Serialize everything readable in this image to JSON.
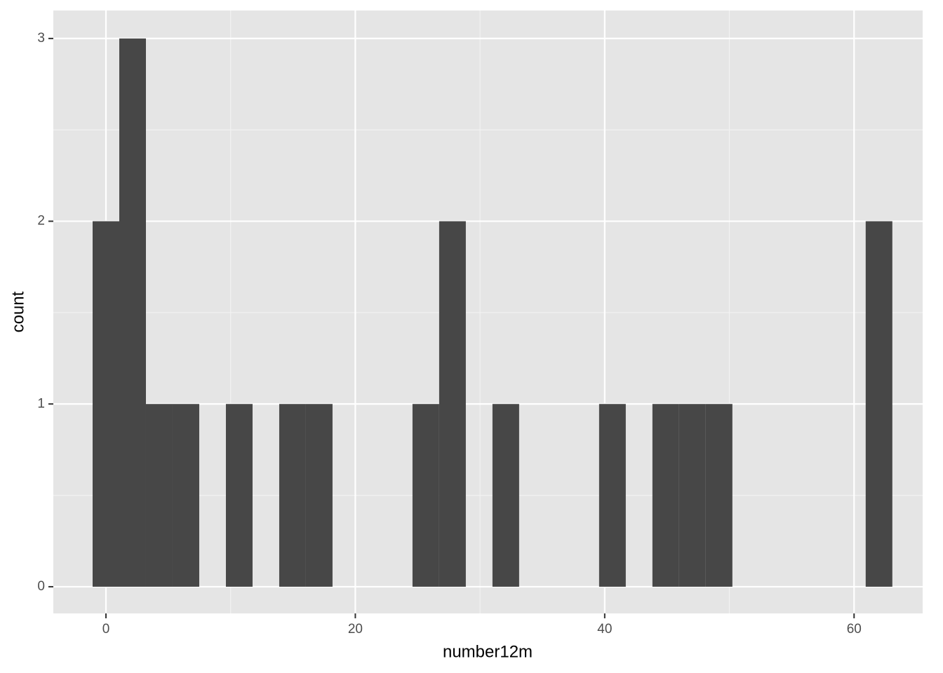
{
  "chart_data": {
    "type": "histogram",
    "x_label": "number12m",
    "y_label": "count",
    "bins": [
      -1.069,
      1.069,
      3.207,
      5.345,
      7.483,
      9.621,
      11.759,
      13.897,
      16.034,
      18.172,
      20.31,
      22.448,
      24.586,
      26.724,
      28.862,
      31.0,
      33.138,
      35.276,
      37.414,
      39.552,
      41.69,
      43.828,
      45.966,
      48.103,
      50.241,
      52.379,
      54.517,
      56.655,
      58.793,
      60.931,
      63.069
    ],
    "values": [
      2,
      3,
      1,
      1,
      0,
      1,
      0,
      1,
      1,
      0,
      0,
      0,
      1,
      2,
      0,
      1,
      0,
      0,
      0,
      1,
      0,
      1,
      1,
      1,
      0,
      0,
      0,
      0,
      0,
      2
    ],
    "color": "#474747",
    "xlim": [
      -4.22,
      65.5
    ],
    "ylim": [
      -0.146,
      3.153
    ],
    "xticks": [
      0,
      20,
      40,
      60
    ],
    "yticks": [
      0,
      1,
      2,
      3
    ],
    "grid": true
  }
}
